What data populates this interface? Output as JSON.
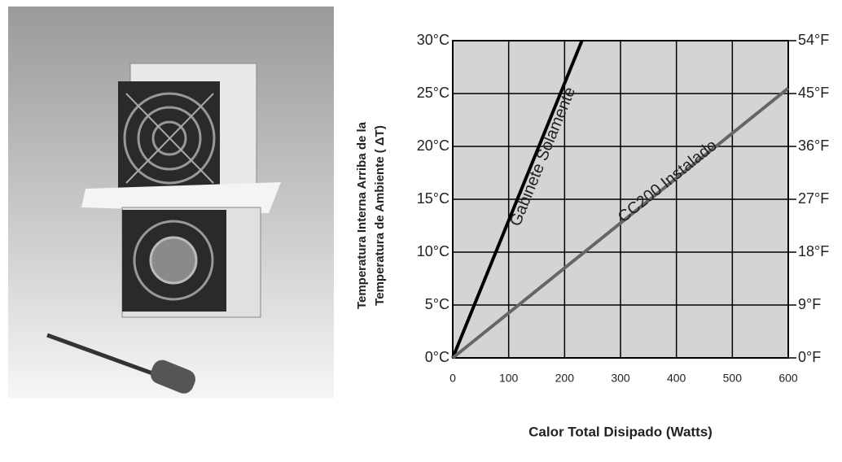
{
  "chart_data": {
    "type": "line",
    "xlabel": "Calor Total Disipado (Watts)",
    "ylabel": [
      "Temperatura Interna Arriba de la",
      "Temperatura de Ambiente (  ΔT)"
    ],
    "xlim": [
      0,
      600
    ],
    "xticks": [
      0,
      100,
      200,
      300,
      400,
      500,
      600
    ],
    "ylim": [
      0,
      30
    ],
    "yticks": [
      {
        "value": 0,
        "label": "0°C"
      },
      {
        "value": 5,
        "label": "5°C"
      },
      {
        "value": 10,
        "label": "10°C"
      },
      {
        "value": 15,
        "label": "15°C"
      },
      {
        "value": 20,
        "label": "20°C"
      },
      {
        "value": 25,
        "label": "25°C"
      },
      {
        "value": 30,
        "label": "30°C"
      }
    ],
    "y2lim": [
      0,
      54
    ],
    "y2ticks": [
      {
        "value": 0,
        "label": "0°F"
      },
      {
        "value": 9,
        "label": "9°F"
      },
      {
        "value": 18,
        "label": "18°F"
      },
      {
        "value": 27,
        "label": "27°F"
      },
      {
        "value": 36,
        "label": "36°F"
      },
      {
        "value": 45,
        "label": "45°F"
      },
      {
        "value": 54,
        "label": "54°F"
      }
    ],
    "grid": true,
    "series": [
      {
        "name": "Gabinete Solamente",
        "color": "#000000",
        "x": [
          0,
          231
        ],
        "values": [
          0,
          30
        ]
      },
      {
        "name": "CC200 Instalado",
        "color": "#666666",
        "x": [
          0,
          600
        ],
        "values": [
          0,
          25.5
        ]
      }
    ]
  }
}
